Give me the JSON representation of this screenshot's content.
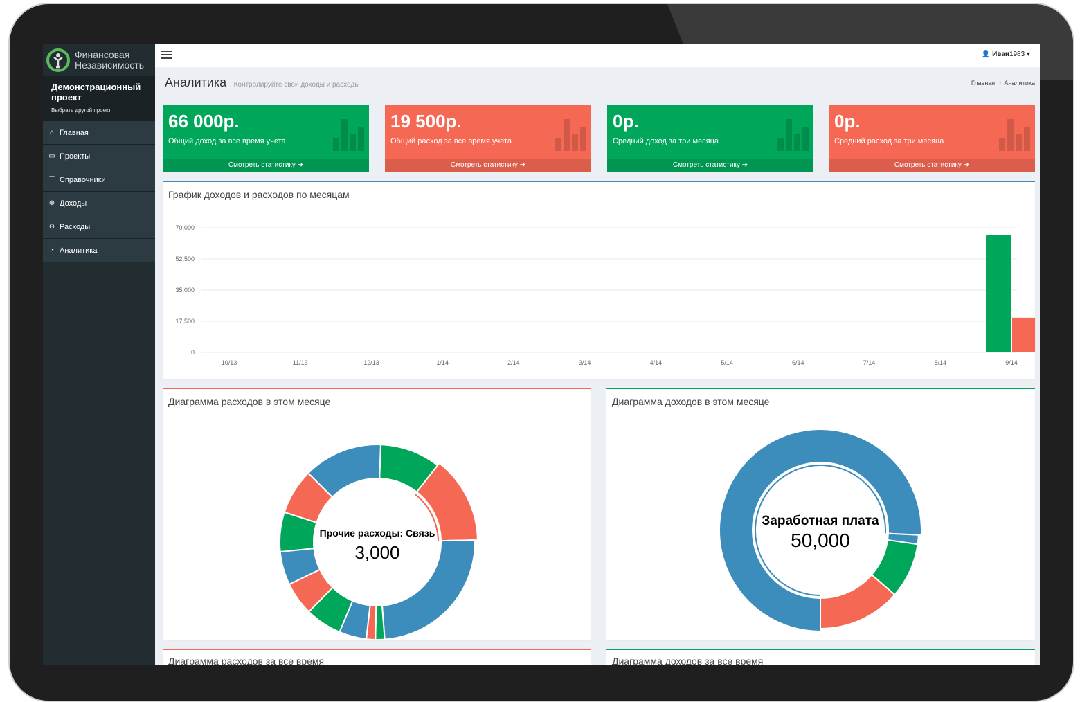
{
  "logo": {
    "line1": "Финансовая",
    "line2": "Независимость"
  },
  "project": {
    "name": "Демонстрационный проект",
    "switch_link": "Выбрать другой проект"
  },
  "menu": [
    {
      "icon": "home-icon",
      "glyph": "⌂",
      "label": "Главная"
    },
    {
      "icon": "folder-icon",
      "glyph": "▭",
      "label": "Проекты"
    },
    {
      "icon": "list-icon",
      "glyph": "☰",
      "label": "Справочники"
    },
    {
      "icon": "plus-circle-icon",
      "glyph": "⊕",
      "label": "Доходы"
    },
    {
      "icon": "minus-circle-icon",
      "glyph": "⊖",
      "label": "Расходы"
    },
    {
      "icon": "dashboard-icon",
      "glyph": "◔",
      "label": "Аналитика"
    }
  ],
  "user": {
    "name": "Иван",
    "suffix": "1983"
  },
  "page": {
    "title": "Аналитика",
    "subtitle": "Контролируйте свои доходы и расходы"
  },
  "breadcrumb": {
    "home": "Главная",
    "current": "Аналитика"
  },
  "stats": [
    {
      "value": "66 000р.",
      "label": "Общий доход за все время учета",
      "footer": "Смотреть статистику ➔",
      "color": "#00a65a"
    },
    {
      "value": "19 500р.",
      "label": "Общий расход за все время учета",
      "footer": "Смотреть статистику ➔",
      "color": "#f56954"
    },
    {
      "value": "0р.",
      "label": "Средний доход за три месяца",
      "footer": "Смотреть статистику ➔",
      "color": "#00a65a"
    },
    {
      "value": "0р.",
      "label": "Средний расход за три месяца",
      "footer": "Смотреть статистику ➔",
      "color": "#f56954"
    }
  ],
  "colors": {
    "income": "#00a65a",
    "expense": "#f56954",
    "blue": "#3c8dbc"
  },
  "panels": {
    "bar_chart_title": "График доходов и расходов по месяцам",
    "expense_month_title": "Диаграмма расходов в этом месяце",
    "income_month_title": "Диаграмма доходов в этом месяце",
    "expense_all_title": "Диаграмма расходов за все время",
    "income_all_title": "Диаграмма доходов за все время"
  },
  "chart_data": [
    {
      "type": "bar",
      "title": "График доходов и расходов по месяцам",
      "categories": [
        "10/13",
        "11/13",
        "12/13",
        "1/14",
        "2/14",
        "3/14",
        "4/14",
        "5/14",
        "6/14",
        "7/14",
        "8/14",
        "9/14"
      ],
      "y_ticks": [
        "70,000",
        "52,500",
        "35,000",
        "17,500",
        "0"
      ],
      "ylim": [
        0,
        70000
      ],
      "grid": true,
      "series": [
        {
          "color": "#00a65a",
          "values": [
            0,
            0,
            0,
            0,
            0,
            0,
            0,
            0,
            0,
            0,
            0,
            66000
          ]
        },
        {
          "color": "#f56954",
          "values": [
            0,
            0,
            0,
            0,
            0,
            0,
            0,
            0,
            0,
            0,
            0,
            19500
          ]
        }
      ]
    },
    {
      "type": "pie",
      "title": "Диаграмма расходов в этом месяце",
      "center_label": "Прочие расходы: Связь",
      "center_value": "3,000",
      "slices": [
        {
          "value": 10,
          "color": "#00a65a"
        },
        {
          "value": 14,
          "color": "#f56954",
          "highlight": true
        },
        {
          "value": 24,
          "color": "#3c8dbc"
        },
        {
          "value": 1.5,
          "color": "#00a65a"
        },
        {
          "value": 1.5,
          "color": "#f56954"
        },
        {
          "value": 4.5,
          "color": "#3c8dbc"
        },
        {
          "value": 6,
          "color": "#00a65a"
        },
        {
          "value": 5.5,
          "color": "#f56954"
        },
        {
          "value": 5.5,
          "color": "#3c8dbc"
        },
        {
          "value": 6.5,
          "color": "#00a65a"
        },
        {
          "value": 7.5,
          "color": "#f56954"
        },
        {
          "value": 13,
          "color": "#3c8dbc"
        }
      ]
    },
    {
      "type": "pie",
      "title": "Диаграмма доходов в этом месяце",
      "center_label": "Заработная плата",
      "center_value": "50,000",
      "slices": [
        {
          "value": 50000,
          "color": "#3c8dbc",
          "highlight": true
        },
        {
          "value": 1000,
          "color": "#3c8dbc"
        },
        {
          "value": 6000,
          "color": "#00a65a"
        },
        {
          "value": 9000,
          "color": "#f56954"
        }
      ]
    }
  ]
}
